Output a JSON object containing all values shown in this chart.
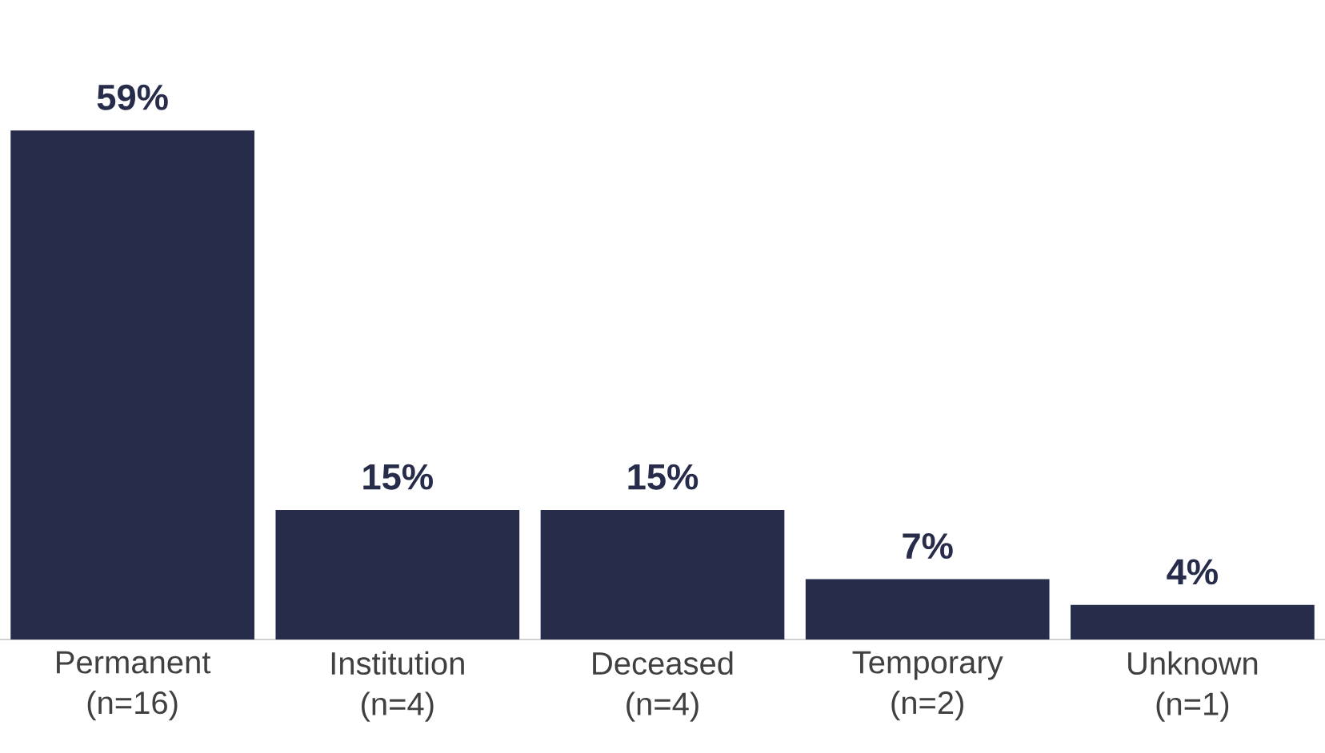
{
  "chart_data": {
    "type": "bar",
    "categories": [
      "Permanent (n=16)",
      "Institution (n=4)",
      "Deceased (n=4)",
      "Temporary (n=2)",
      "Unknown (n=1)"
    ],
    "values": [
      59,
      15,
      15,
      7,
      4
    ],
    "value_labels": [
      "59%",
      "15%",
      "15%",
      "7%",
      "4%"
    ],
    "color": "#262c4a",
    "tick_labels": "x"
  }
}
